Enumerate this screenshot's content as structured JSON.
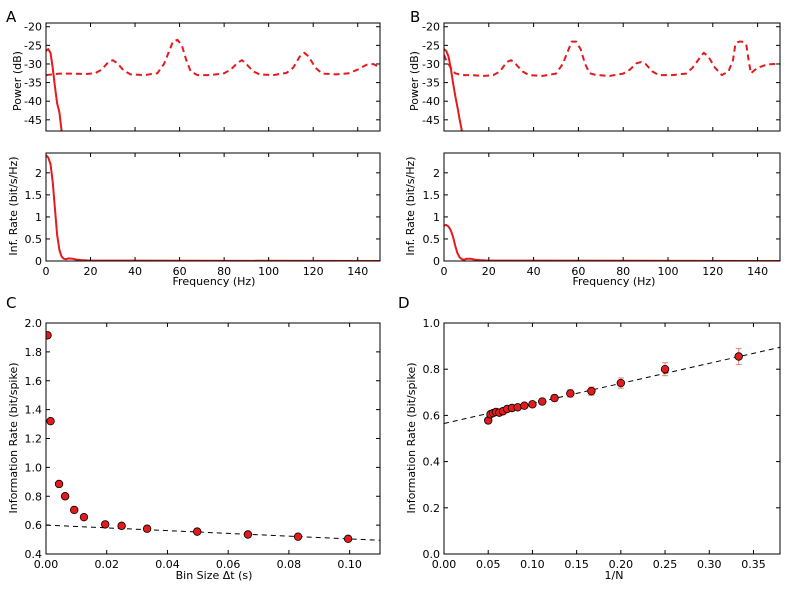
{
  "chart_data": [
    {
      "id": "A_power",
      "panel_letter": "A",
      "type": "line",
      "ylabel": "Power (dB)",
      "xlim": [
        0,
        150
      ],
      "ylim": [
        -48,
        -19
      ],
      "yticks": [
        -45,
        -40,
        -35,
        -30,
        -25,
        -20
      ],
      "series": [
        {
          "name": "solid",
          "style": "solid",
          "color": "#e41a1c",
          "x": [
            0,
            1,
            2,
            3,
            4,
            5,
            6,
            7
          ],
          "y": [
            -26.5,
            -26,
            -27,
            -31,
            -36,
            -40.5,
            -43,
            -48
          ]
        },
        {
          "name": "dashed",
          "style": "dashed",
          "color": "#e41a1c",
          "x": [
            0,
            6,
            12,
            18,
            22,
            25,
            28,
            30,
            32,
            35,
            38,
            44,
            50,
            53,
            55,
            57,
            59,
            61,
            63,
            65,
            68,
            74,
            80,
            83,
            86,
            88,
            90,
            93,
            96,
            102,
            108,
            111,
            114,
            116,
            118,
            121,
            124,
            130,
            136,
            140,
            144,
            147,
            150
          ],
          "y": [
            -33,
            -32.6,
            -32.6,
            -32.7,
            -32.5,
            -31.5,
            -29.5,
            -29,
            -29.8,
            -31.8,
            -32.8,
            -33,
            -32.5,
            -30,
            -27,
            -24,
            -23.5,
            -25,
            -29,
            -32,
            -33,
            -33,
            -32.5,
            -31.5,
            -29.7,
            -29,
            -30,
            -32,
            -32.8,
            -33,
            -32.4,
            -31,
            -28,
            -27,
            -28,
            -31,
            -32.6,
            -32.8,
            -32.5,
            -31.5,
            -30.2,
            -30,
            -31
          ]
        }
      ]
    },
    {
      "id": "A_info",
      "type": "line",
      "ylabel": "Inf. Rate (bit/s/Hz)",
      "xlabel": "Frequency (Hz)",
      "xlim": [
        0,
        150
      ],
      "ylim": [
        0,
        2.45
      ],
      "xticks": [
        0,
        20,
        40,
        60,
        80,
        100,
        120,
        140
      ],
      "yticks": [
        0.0,
        0.5,
        1.0,
        1.5,
        2.0
      ],
      "series": [
        {
          "name": "solid",
          "style": "solid",
          "color": "#e41a1c",
          "x": [
            0,
            1,
            2,
            3,
            4,
            5,
            6,
            7,
            8,
            9,
            10,
            12,
            14,
            16,
            20,
            30,
            150
          ],
          "y": [
            2.4,
            2.35,
            2.2,
            1.8,
            1.2,
            0.6,
            0.25,
            0.1,
            0.05,
            0.04,
            0.06,
            0.05,
            0.03,
            0.02,
            0.01,
            0.01,
            0.0
          ]
        }
      ]
    },
    {
      "id": "B_power",
      "panel_letter": "B",
      "type": "line",
      "ylabel": "Power (dB)",
      "xlim": [
        0,
        150
      ],
      "ylim": [
        -48,
        -19
      ],
      "yticks": [
        -45,
        -40,
        -35,
        -30,
        -25,
        -20
      ],
      "series": [
        {
          "name": "solid",
          "style": "solid",
          "color": "#e41a1c",
          "x": [
            0,
            1,
            2,
            3,
            4,
            5,
            6,
            7,
            8
          ],
          "y": [
            -26,
            -26.5,
            -28,
            -31,
            -35,
            -38.5,
            -41.5,
            -45,
            -48
          ]
        },
        {
          "name": "dashed",
          "style": "dashed",
          "color": "#e41a1c",
          "x": [
            0,
            1,
            2,
            3,
            5,
            8,
            12,
            18,
            22,
            25,
            28,
            30,
            32,
            35,
            38,
            44,
            50,
            53,
            55,
            57,
            59,
            61,
            63,
            65,
            68,
            74,
            80,
            83,
            86,
            88,
            90,
            93,
            96,
            102,
            108,
            111,
            114,
            116,
            118,
            121,
            124,
            127,
            129,
            130,
            131,
            132,
            133,
            134,
            135,
            136,
            137,
            138,
            140,
            144,
            147,
            150
          ],
          "y": [
            -27.5,
            -29,
            -30,
            -31,
            -32.5,
            -33,
            -33,
            -33.2,
            -33,
            -32,
            -29.5,
            -29,
            -30,
            -32,
            -33,
            -33.2,
            -32.6,
            -30,
            -27,
            -24,
            -24,
            -26,
            -30,
            -32.5,
            -33,
            -33.2,
            -32.6,
            -31.5,
            -29.8,
            -29.5,
            -30,
            -32,
            -33,
            -33,
            -32.6,
            -31,
            -28.5,
            -27,
            -28,
            -31,
            -33,
            -32,
            -29,
            -25,
            -24.2,
            -24,
            -24,
            -24.2,
            -25,
            -29,
            -32.5,
            -32,
            -31,
            -30.2,
            -30,
            -30
          ]
        }
      ]
    },
    {
      "id": "B_info",
      "type": "line",
      "ylabel": "Inf. Rate (bit/s/Hz)",
      "xlabel": "Frequency (Hz)",
      "xlim": [
        0,
        150
      ],
      "ylim": [
        0,
        2.45
      ],
      "xticks": [
        0,
        20,
        40,
        60,
        80,
        100,
        120,
        140
      ],
      "yticks": [
        0.0,
        0.5,
        1.0,
        1.5,
        2.0
      ],
      "series": [
        {
          "name": "solid",
          "style": "solid",
          "color": "#e41a1c",
          "x": [
            0,
            1,
            2,
            3,
            4,
            5,
            6,
            7,
            8,
            9,
            10,
            12,
            14,
            16,
            20,
            30,
            150
          ],
          "y": [
            0.8,
            0.82,
            0.78,
            0.7,
            0.55,
            0.35,
            0.18,
            0.08,
            0.04,
            0.03,
            0.05,
            0.05,
            0.03,
            0.02,
            0.01,
            0.01,
            0.0
          ]
        }
      ]
    },
    {
      "id": "C",
      "panel_letter": "C",
      "type": "scatter",
      "ylabel": "Information Rate (bit/spike)",
      "xlabel": "Bin Size Δt (s)",
      "xlim": [
        0,
        0.11
      ],
      "ylim": [
        0.4,
        2.0
      ],
      "xticks": [
        0.0,
        0.02,
        0.04,
        0.06,
        0.08,
        0.1
      ],
      "xtick_labels": [
        "0.00",
        "0.02",
        "0.04",
        "0.06",
        "0.08",
        "0.10"
      ],
      "yticks": [
        0.4,
        0.6,
        0.8,
        1.0,
        1.2,
        1.4,
        1.6,
        1.8,
        2.0
      ],
      "ytick_labels": [
        "0.4",
        "0.6",
        "0.8",
        "1.0",
        "1.2",
        "1.4",
        "1.6",
        "1.8",
        "2.0"
      ],
      "points": {
        "x": [
          0.0005,
          0.0015,
          0.0043,
          0.0063,
          0.0093,
          0.0125,
          0.0195,
          0.0249,
          0.0333,
          0.0498,
          0.0665,
          0.083,
          0.0995
        ],
        "y": [
          1.915,
          1.32,
          0.885,
          0.8,
          0.705,
          0.655,
          0.605,
          0.595,
          0.575,
          0.555,
          0.535,
          0.52,
          0.505
        ]
      },
      "fit": {
        "x": [
          0,
          0.11
        ],
        "y": [
          0.6,
          0.495
        ]
      }
    },
    {
      "id": "D",
      "panel_letter": "D",
      "type": "scatter",
      "ylabel": "Information Rate (bit/spike)",
      "xlabel": "1/N",
      "xlim": [
        0,
        0.38
      ],
      "ylim": [
        0,
        1.0
      ],
      "xticks": [
        0.0,
        0.05,
        0.1,
        0.15,
        0.2,
        0.25,
        0.3,
        0.35
      ],
      "xtick_labels": [
        "0.00",
        "0.05",
        "0.10",
        "0.15",
        "0.20",
        "0.25",
        "0.30",
        "0.35"
      ],
      "yticks": [
        0.0,
        0.2,
        0.4,
        0.6,
        0.8,
        1.0
      ],
      "ytick_labels": [
        "0.0",
        "0.2",
        "0.4",
        "0.6",
        "0.8",
        "1.0"
      ],
      "points": {
        "x": [
          0.05,
          0.0526,
          0.0556,
          0.0588,
          0.0625,
          0.0667,
          0.0714,
          0.0769,
          0.0833,
          0.0909,
          0.1,
          0.1111,
          0.125,
          0.1429,
          0.1667,
          0.2,
          0.25,
          0.3333
        ],
        "y": [
          0.578,
          0.605,
          0.61,
          0.615,
          0.612,
          0.618,
          0.628,
          0.632,
          0.635,
          0.642,
          0.648,
          0.66,
          0.675,
          0.695,
          0.705,
          0.74,
          0.8,
          0.855
        ],
        "err": [
          0.005,
          0.006,
          0.006,
          0.006,
          0.007,
          0.007,
          0.008,
          0.008,
          0.009,
          0.01,
          0.011,
          0.012,
          0.014,
          0.016,
          0.018,
          0.022,
          0.028,
          0.035
        ]
      },
      "fit": {
        "x": [
          0,
          0.38
        ],
        "y": [
          0.565,
          0.895
        ]
      }
    }
  ]
}
